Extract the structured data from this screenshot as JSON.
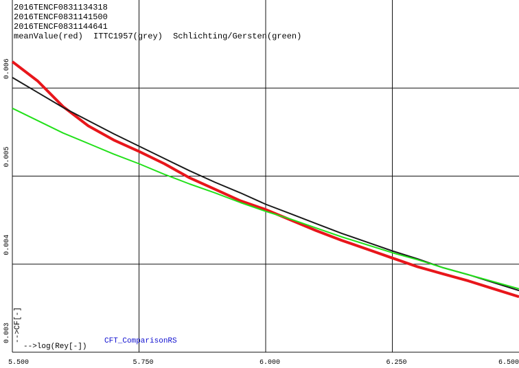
{
  "chart_data": {
    "type": "line",
    "header_lines": [
      "2016TENCF0831134318",
      "2016TENCF0831141500",
      "2016TENCF0831144641"
    ],
    "x_label": "-->log(Rey[-])",
    "plot_name": "CFT_ComparisonRS",
    "y_label": "-->CF[-]",
    "x": [
      5.5,
      5.55,
      5.6,
      5.65,
      5.7,
      5.75,
      5.8,
      5.85,
      5.9,
      5.95,
      6.0,
      6.05,
      6.1,
      6.15,
      6.2,
      6.25,
      6.3,
      6.35,
      6.4,
      6.45,
      6.5
    ],
    "series": [
      {
        "name": "meanValue(red)",
        "color": "#e8161b",
        "width": 4,
        "values": [
          0.0063,
          0.00608,
          0.00579,
          0.00557,
          0.00541,
          0.00528,
          0.00514,
          0.00498,
          0.00485,
          0.00472,
          0.00462,
          0.0045,
          0.00438,
          0.00427,
          0.00417,
          0.00407,
          0.00397,
          0.00389,
          0.00381,
          0.00372,
          0.00363
        ]
      },
      {
        "name": "ITTC1957(grey)",
        "color": "#1a1a1a",
        "width": 2,
        "values": [
          0.00612,
          0.00595,
          0.00578,
          0.00563,
          0.00548,
          0.00534,
          0.0052,
          0.00506,
          0.00493,
          0.00481,
          0.00468,
          0.00457,
          0.00446,
          0.00435,
          0.00425,
          0.00415,
          0.00406,
          0.00396,
          0.00388,
          0.00379,
          0.0037
        ]
      },
      {
        "name": "Schlichting/Gersten(green)",
        "color": "#22e01a",
        "width": 2,
        "values": [
          0.00577,
          0.00563,
          0.00549,
          0.00537,
          0.00525,
          0.00514,
          0.00502,
          0.00491,
          0.00481,
          0.0047,
          0.0046,
          0.00451,
          0.00441,
          0.00431,
          0.00422,
          0.00413,
          0.00405,
          0.00396,
          0.00388,
          0.0038,
          0.00372
        ]
      }
    ],
    "xlim": [
      5.5,
      6.5
    ],
    "xticks": [
      {
        "value": 5.5,
        "label": "5.500"
      },
      {
        "value": 5.75,
        "label": "5.750"
      },
      {
        "value": 6.0,
        "label": "6.000"
      },
      {
        "value": 6.25,
        "label": "6.250"
      },
      {
        "value": 6.5,
        "label": "6.500"
      }
    ],
    "ylim": [
      0.003,
      0.007
    ],
    "yticks": [
      0.003,
      0.004,
      0.005,
      0.006
    ],
    "grid": true
  }
}
